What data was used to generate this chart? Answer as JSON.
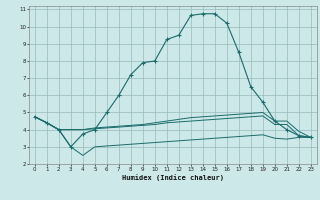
{
  "xlabel": "Humidex (Indice chaleur)",
  "bg_color": "#cce8e8",
  "grid_color": "#99bbbb",
  "line_color": "#1a6b6b",
  "xlim": [
    -0.5,
    23.5
  ],
  "ylim": [
    2,
    11.2
  ],
  "xticks": [
    0,
    1,
    2,
    3,
    4,
    5,
    6,
    7,
    8,
    9,
    10,
    11,
    12,
    13,
    14,
    15,
    16,
    17,
    18,
    19,
    20,
    21,
    22,
    23
  ],
  "yticks": [
    2,
    3,
    4,
    5,
    6,
    7,
    8,
    9,
    10,
    11
  ],
  "curve1_x": [
    0,
    1,
    2,
    3,
    4,
    5,
    6,
    7,
    8,
    9,
    10,
    11,
    12,
    13,
    14,
    15,
    16,
    17,
    18,
    19,
    20,
    21,
    22,
    23
  ],
  "curve1_y": [
    4.75,
    4.4,
    4.0,
    3.0,
    3.75,
    4.0,
    5.0,
    6.0,
    7.2,
    7.9,
    8.0,
    9.25,
    9.5,
    10.65,
    10.75,
    10.75,
    10.2,
    8.5,
    6.5,
    5.6,
    4.5,
    4.0,
    3.65,
    3.55
  ],
  "curve2_x": [
    0,
    1,
    2,
    3,
    4,
    5,
    6,
    7,
    8,
    9,
    10,
    11,
    12,
    13,
    14,
    15,
    16,
    17,
    18,
    19,
    20,
    21,
    22,
    23
  ],
  "curve2_y": [
    4.75,
    4.4,
    4.0,
    4.0,
    4.0,
    4.1,
    4.15,
    4.2,
    4.25,
    4.3,
    4.4,
    4.5,
    4.6,
    4.7,
    4.75,
    4.8,
    4.85,
    4.9,
    4.95,
    5.0,
    4.5,
    4.5,
    3.9,
    3.55
  ],
  "curve3_x": [
    0,
    1,
    2,
    3,
    4,
    5,
    6,
    7,
    8,
    9,
    10,
    11,
    12,
    13,
    14,
    15,
    16,
    17,
    18,
    19,
    20,
    21,
    22,
    23
  ],
  "curve3_y": [
    4.75,
    4.4,
    4.0,
    4.0,
    4.0,
    4.05,
    4.1,
    4.15,
    4.2,
    4.25,
    4.3,
    4.4,
    4.45,
    4.5,
    4.55,
    4.6,
    4.65,
    4.7,
    4.75,
    4.8,
    4.3,
    4.3,
    3.65,
    3.55
  ],
  "curve4_x": [
    0,
    1,
    2,
    3,
    4,
    5,
    6,
    7,
    8,
    9,
    10,
    11,
    12,
    13,
    14,
    15,
    16,
    17,
    18,
    19,
    20,
    21,
    22,
    23
  ],
  "curve4_y": [
    4.75,
    4.4,
    4.0,
    3.0,
    2.5,
    3.0,
    3.05,
    3.1,
    3.15,
    3.2,
    3.25,
    3.3,
    3.35,
    3.4,
    3.45,
    3.5,
    3.55,
    3.6,
    3.65,
    3.7,
    3.5,
    3.45,
    3.55,
    3.55
  ]
}
